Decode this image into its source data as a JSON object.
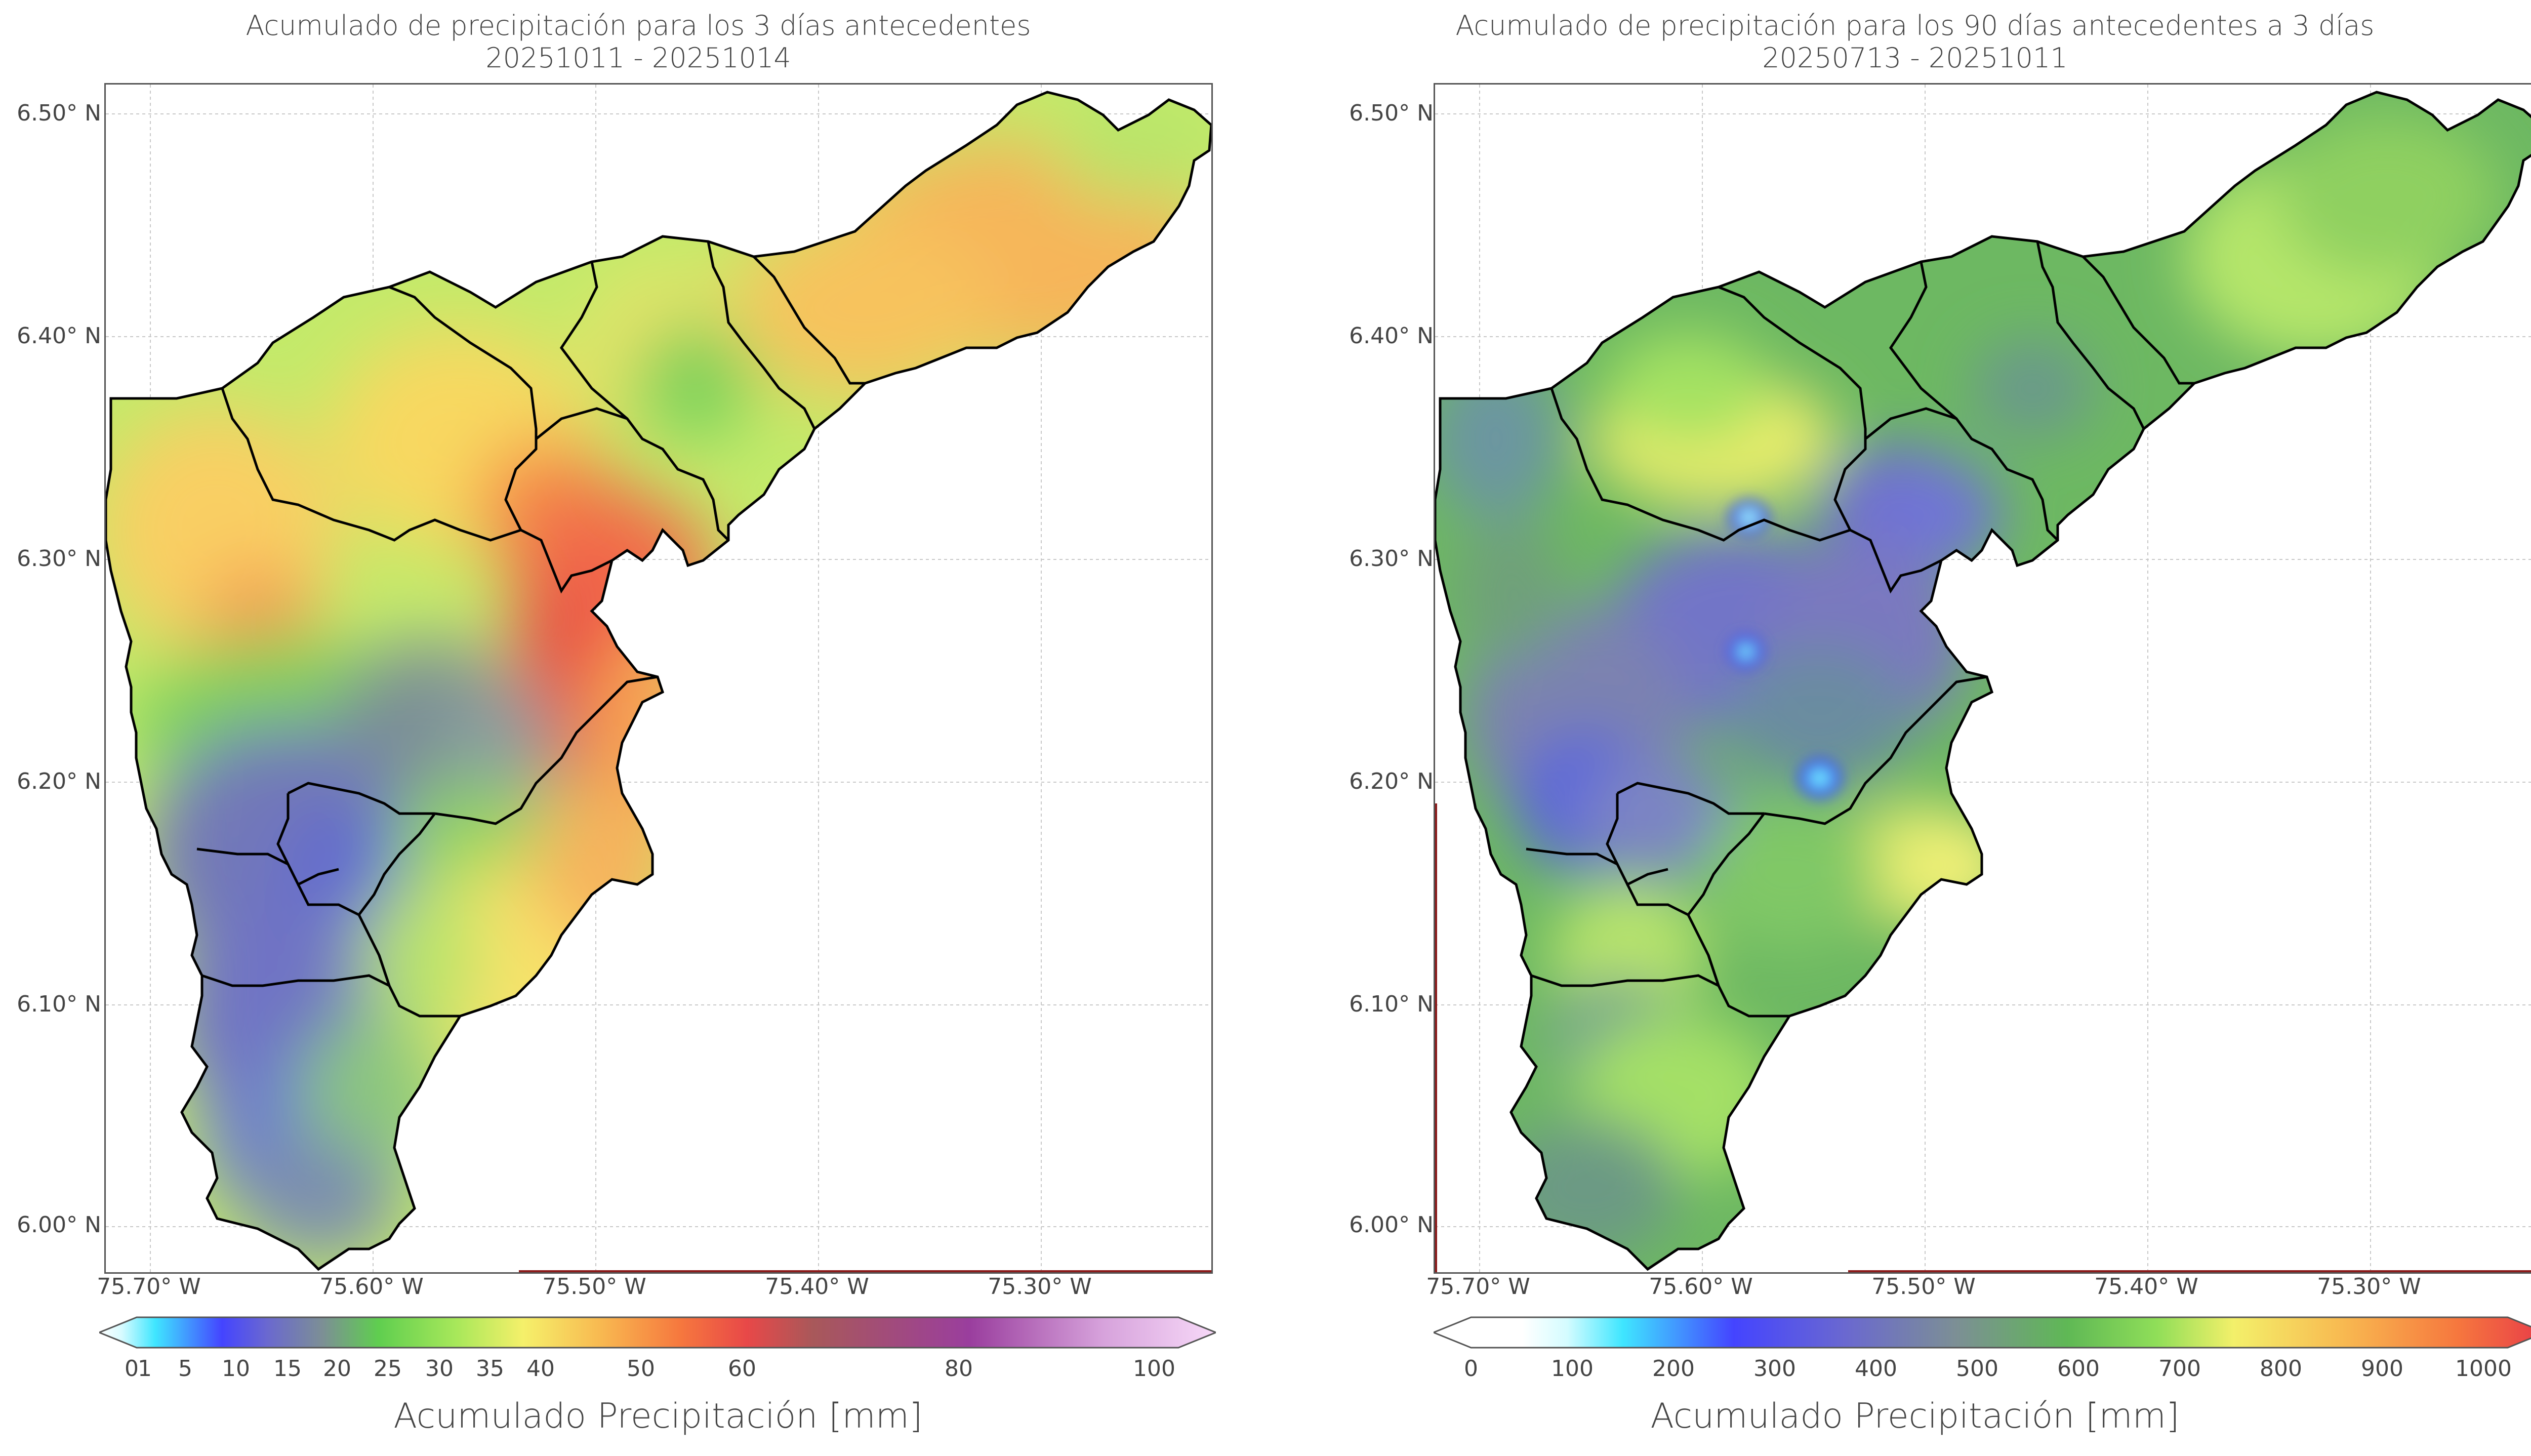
{
  "left": {
    "title_line1": "Acumulado de precipitación para los 3 días antecedentes",
    "title_line2": "20251011 - 20251014",
    "y_ticks": [
      "6.50° N",
      "6.40° N",
      "6.30° N",
      "6.20° N",
      "6.10° N",
      "6.00° N"
    ],
    "x_ticks": [
      "75.70° W",
      "75.60° W",
      "75.50° W",
      "75.40° W",
      "75.30° W"
    ],
    "colorbar_label": "Acumulado Precipitación [mm]",
    "colorbar_ticks": [
      "0",
      "1",
      "5",
      "10",
      "15",
      "20",
      "25",
      "30",
      "35",
      "40",
      "50",
      "60",
      "80",
      "100"
    ]
  },
  "right": {
    "title_line1": "Acumulado de precipitación para los 90 días antecedentes a 3 días",
    "title_line2": "20250713 - 20251011",
    "y_ticks": [
      "6.50° N",
      "6.40° N",
      "6.30° N",
      "6.20° N",
      "6.10° N",
      "6.00° N"
    ],
    "x_ticks": [
      "75.70° W",
      "75.60° W",
      "75.50° W",
      "75.40° W",
      "75.30° W"
    ],
    "colorbar_label": "Acumulado Precipitación [mm]",
    "colorbar_ticks": [
      "0",
      "100",
      "200",
      "300",
      "400",
      "500",
      "600",
      "700",
      "800",
      "900",
      "1000"
    ]
  },
  "colors": {
    "boundary": "#000000",
    "grid": "#c8c8c8",
    "dark_red_edge": "#8b1a1a"
  }
}
